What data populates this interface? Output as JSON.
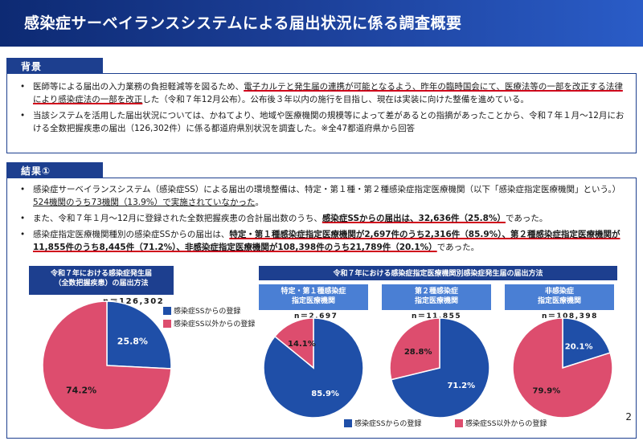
{
  "title": "感染症サーベイランスシステムによる届出状況に係る調査概要",
  "background": {
    "header": "背景",
    "bullet1_pre": "医師等による届出の入力業務の負担軽減等を図るため、",
    "bullet1_ul": "電子カルテと発生届の連携が可能となるよう、昨年の臨時国会にて、医療法等の一部を改正する法律により感染症法の一部を改正",
    "bullet1_post": "した（令和７年12月公布）。公布後３年以内の施行を目指し、現在は実装に向けた整備を進めている。",
    "bullet2": "当該システムを活用した届出状況については、かねてより、地域や医療機関の規模等によって差があるとの指摘があったことから、令和７年１月～12月における全数把握疾患の届出（126,302件）に係る都道府県別状況を調査した。※全47都道府県から回答"
  },
  "results": {
    "header": "結果①",
    "b1_pre": "感染症サーベイランスシステム（感染症SS）による届出の環境整備は、特定・第１種・第２種感染症指定医療機関（以下「感染症指定医療機関」という。）",
    "b1_ul": "524機関のうち73機関（13.9%）で実施されていなかった",
    "b1_post": "。",
    "b2_pre": "また、令和７年１月～12月に登録された全数把握疾患の合計届出数のうち、",
    "b2_ul": "感染症SSからの届出は、32,636件（25.8%）",
    "b2_post": "であった。",
    "b3_pre": "感染症指定医療機関種別の感染症SSからの届出は、",
    "b3_ul": "特定・第１種感染症指定医療機関が2,697件のうち2,316件（85.9%）、第２種感染症指定医療機関が11,855件のうち8,445件（71.2%）、非感染症指定医療機関が108,398件のうち21,789件（20.1%）",
    "b3_post": "であった。"
  },
  "left_panel_title": "令和７年における感染症発生届\n（全数把握疾患）の届出方法",
  "right_panel_title": "令和７年における感染症指定医療機関別感染症発生届の届出方法",
  "legend": {
    "ss": "感染症SSからの登録",
    "other": "感染症SS以外からの登録"
  },
  "colors": {
    "ss": "#1f4fa8",
    "other": "#dd4d6e",
    "navy": "#1d3f8f"
  },
  "page_number": "2",
  "chart_data": [
    {
      "type": "pie",
      "n": "n＝126,302",
      "title": "",
      "series": [
        {
          "name": "感染症SSからの登録",
          "value": 25.8,
          "label": "25.8%"
        },
        {
          "name": "感染症SS以外からの登録",
          "value": 74.2,
          "label": "74.2%"
        }
      ]
    },
    {
      "type": "pie",
      "n": "n＝2,697",
      "title": "特定・第１種感染症\n指定医療機関",
      "series": [
        {
          "name": "感染症SSからの登録",
          "value": 85.9,
          "label": "85.9%"
        },
        {
          "name": "感染症SS以外からの登録",
          "value": 14.1,
          "label": "14.1%"
        }
      ]
    },
    {
      "type": "pie",
      "n": "n＝11,855",
      "title": "第２種感染症\n指定医療機関",
      "series": [
        {
          "name": "感染症SSからの登録",
          "value": 71.2,
          "label": "71.2%"
        },
        {
          "name": "感染症SS以外からの登録",
          "value": 28.8,
          "label": "28.8%"
        }
      ]
    },
    {
      "type": "pie",
      "n": "n＝108,398",
      "title": "非感染症\n指定医療機関",
      "series": [
        {
          "name": "感染症SSからの登録",
          "value": 20.1,
          "label": "20.1%"
        },
        {
          "name": "感染症SS以外からの登録",
          "value": 79.9,
          "label": "79.9%"
        }
      ]
    }
  ]
}
